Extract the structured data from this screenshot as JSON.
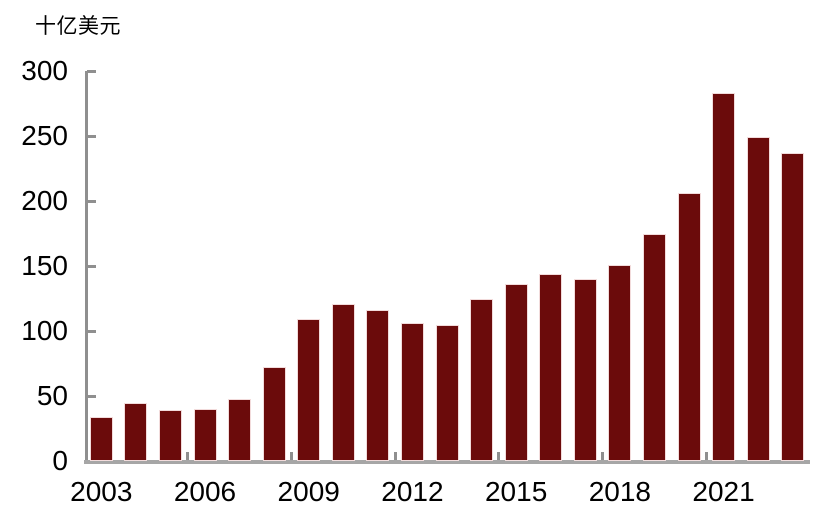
{
  "chart_data": {
    "type": "bar",
    "title": "",
    "unit_label": "十亿美元",
    "categories": [
      2003,
      2004,
      2005,
      2006,
      2007,
      2008,
      2009,
      2010,
      2011,
      2012,
      2013,
      2014,
      2015,
      2016,
      2017,
      2018,
      2019,
      2020,
      2021,
      2022,
      2023
    ],
    "values": [
      34,
      45,
      39,
      40,
      48,
      72,
      109,
      121,
      116,
      106,
      105,
      125,
      136,
      144,
      140,
      151,
      175,
      206,
      283,
      249,
      237
    ],
    "xlabel": "",
    "ylabel": "十亿美元",
    "ylim": [
      0,
      300
    ],
    "yticks": [
      0,
      50,
      100,
      150,
      200,
      250,
      300
    ],
    "xtick_labels": [
      "2003",
      "2006",
      "2009",
      "2012",
      "2015",
      "2018",
      "2021"
    ],
    "xtick_year_interval": 3,
    "grid": false,
    "legend": null,
    "bar_color": "#6B0B0B",
    "bar_border_color": "#F2DBDB",
    "axis_color": "#A6A6A6",
    "tick_color": "#8F8F8F",
    "text_color": "#000000"
  }
}
